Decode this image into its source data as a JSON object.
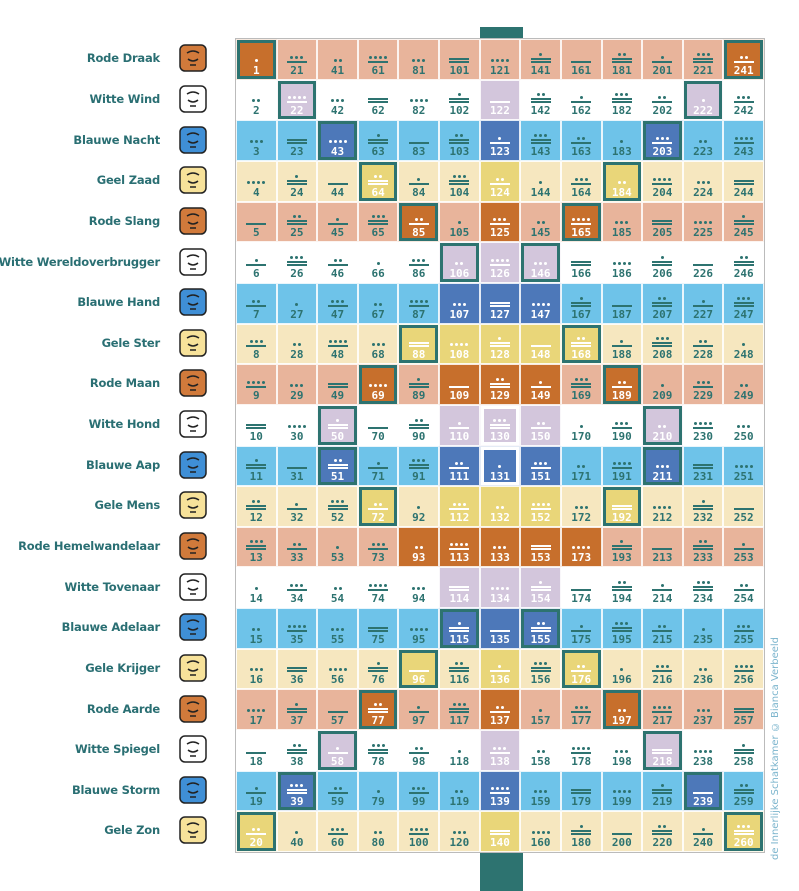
{
  "credit": "de Innerlijke Schatkamer © Bianca Verbeeld",
  "colors": {
    "red": "#e8b49b",
    "white": "#ffffff",
    "blue": "#6ec3e9",
    "yellow": "#f6e7bf",
    "portal_red": "#c76f2c",
    "portal_lilac": "#d3c6dc",
    "portal_blue": "#4d78b9",
    "portal_yellow": "#e9d679",
    "spine": "#2d7370",
    "text": "#2a6f73"
  },
  "rows": [
    {
      "name": "Rode Draak",
      "color": "red",
      "icon": "red-dragon-glyph-icon"
    },
    {
      "name": "Witte Wind",
      "color": "white",
      "icon": "white-wind-glyph-icon"
    },
    {
      "name": "Blauwe Nacht",
      "color": "blue",
      "icon": "blue-night-glyph-icon"
    },
    {
      "name": "Geel Zaad",
      "color": "yellow",
      "icon": "yellow-seed-glyph-icon"
    },
    {
      "name": "Rode Slang",
      "color": "red",
      "icon": "red-serpent-glyph-icon"
    },
    {
      "name": "Witte Wereldoverbrugger",
      "color": "white",
      "icon": "white-worldbridger-glyph-icon"
    },
    {
      "name": "Blauwe Hand",
      "color": "blue",
      "icon": "blue-hand-glyph-icon"
    },
    {
      "name": "Gele Ster",
      "color": "yellow",
      "icon": "yellow-star-glyph-icon"
    },
    {
      "name": "Rode Maan",
      "color": "red",
      "icon": "red-moon-glyph-icon"
    },
    {
      "name": "Witte Hond",
      "color": "white",
      "icon": "white-dog-glyph-icon"
    },
    {
      "name": "Blauwe Aap",
      "color": "blue",
      "icon": "blue-monkey-glyph-icon"
    },
    {
      "name": "Gele Mens",
      "color": "yellow",
      "icon": "yellow-human-glyph-icon"
    },
    {
      "name": "Rode Hemelwandelaar",
      "color": "red",
      "icon": "red-skywalker-glyph-icon"
    },
    {
      "name": "Witte Tovenaar",
      "color": "white",
      "icon": "white-wizard-glyph-icon"
    },
    {
      "name": "Blauwe Adelaar",
      "color": "blue",
      "icon": "blue-eagle-glyph-icon"
    },
    {
      "name": "Gele Krijger",
      "color": "yellow",
      "icon": "yellow-warrior-glyph-icon"
    },
    {
      "name": "Rode Aarde",
      "color": "red",
      "icon": "red-earth-glyph-icon"
    },
    {
      "name": "Witte Spiegel",
      "color": "white",
      "icon": "white-mirror-glyph-icon"
    },
    {
      "name": "Blauwe Storm",
      "color": "blue",
      "icon": "blue-storm-glyph-icon"
    },
    {
      "name": "Gele Zon",
      "color": "yellow",
      "icon": "yellow-sun-glyph-icon"
    }
  ],
  "portal_days": [
    1,
    20,
    22,
    39,
    43,
    50,
    51,
    58,
    64,
    69,
    72,
    77,
    85,
    88,
    93,
    96,
    106,
    107,
    108,
    109,
    110,
    111,
    112,
    113,
    114,
    115,
    122,
    123,
    124,
    125,
    126,
    127,
    128,
    129,
    130,
    131,
    132,
    133,
    134,
    135,
    136,
    137,
    138,
    139,
    140,
    146,
    147,
    148,
    149,
    150,
    151,
    152,
    153,
    154,
    155,
    165,
    168,
    173,
    176,
    184,
    189,
    192,
    197,
    203,
    210,
    211,
    218,
    222,
    239,
    241,
    260
  ],
  "outlined_days": [
    1,
    20,
    22,
    39,
    43,
    50,
    51,
    58,
    64,
    69,
    72,
    77,
    85,
    88,
    96,
    106,
    115,
    146,
    155,
    165,
    168,
    176,
    184,
    189,
    192,
    197,
    203,
    210,
    211,
    218,
    222,
    239,
    241,
    260
  ]
}
